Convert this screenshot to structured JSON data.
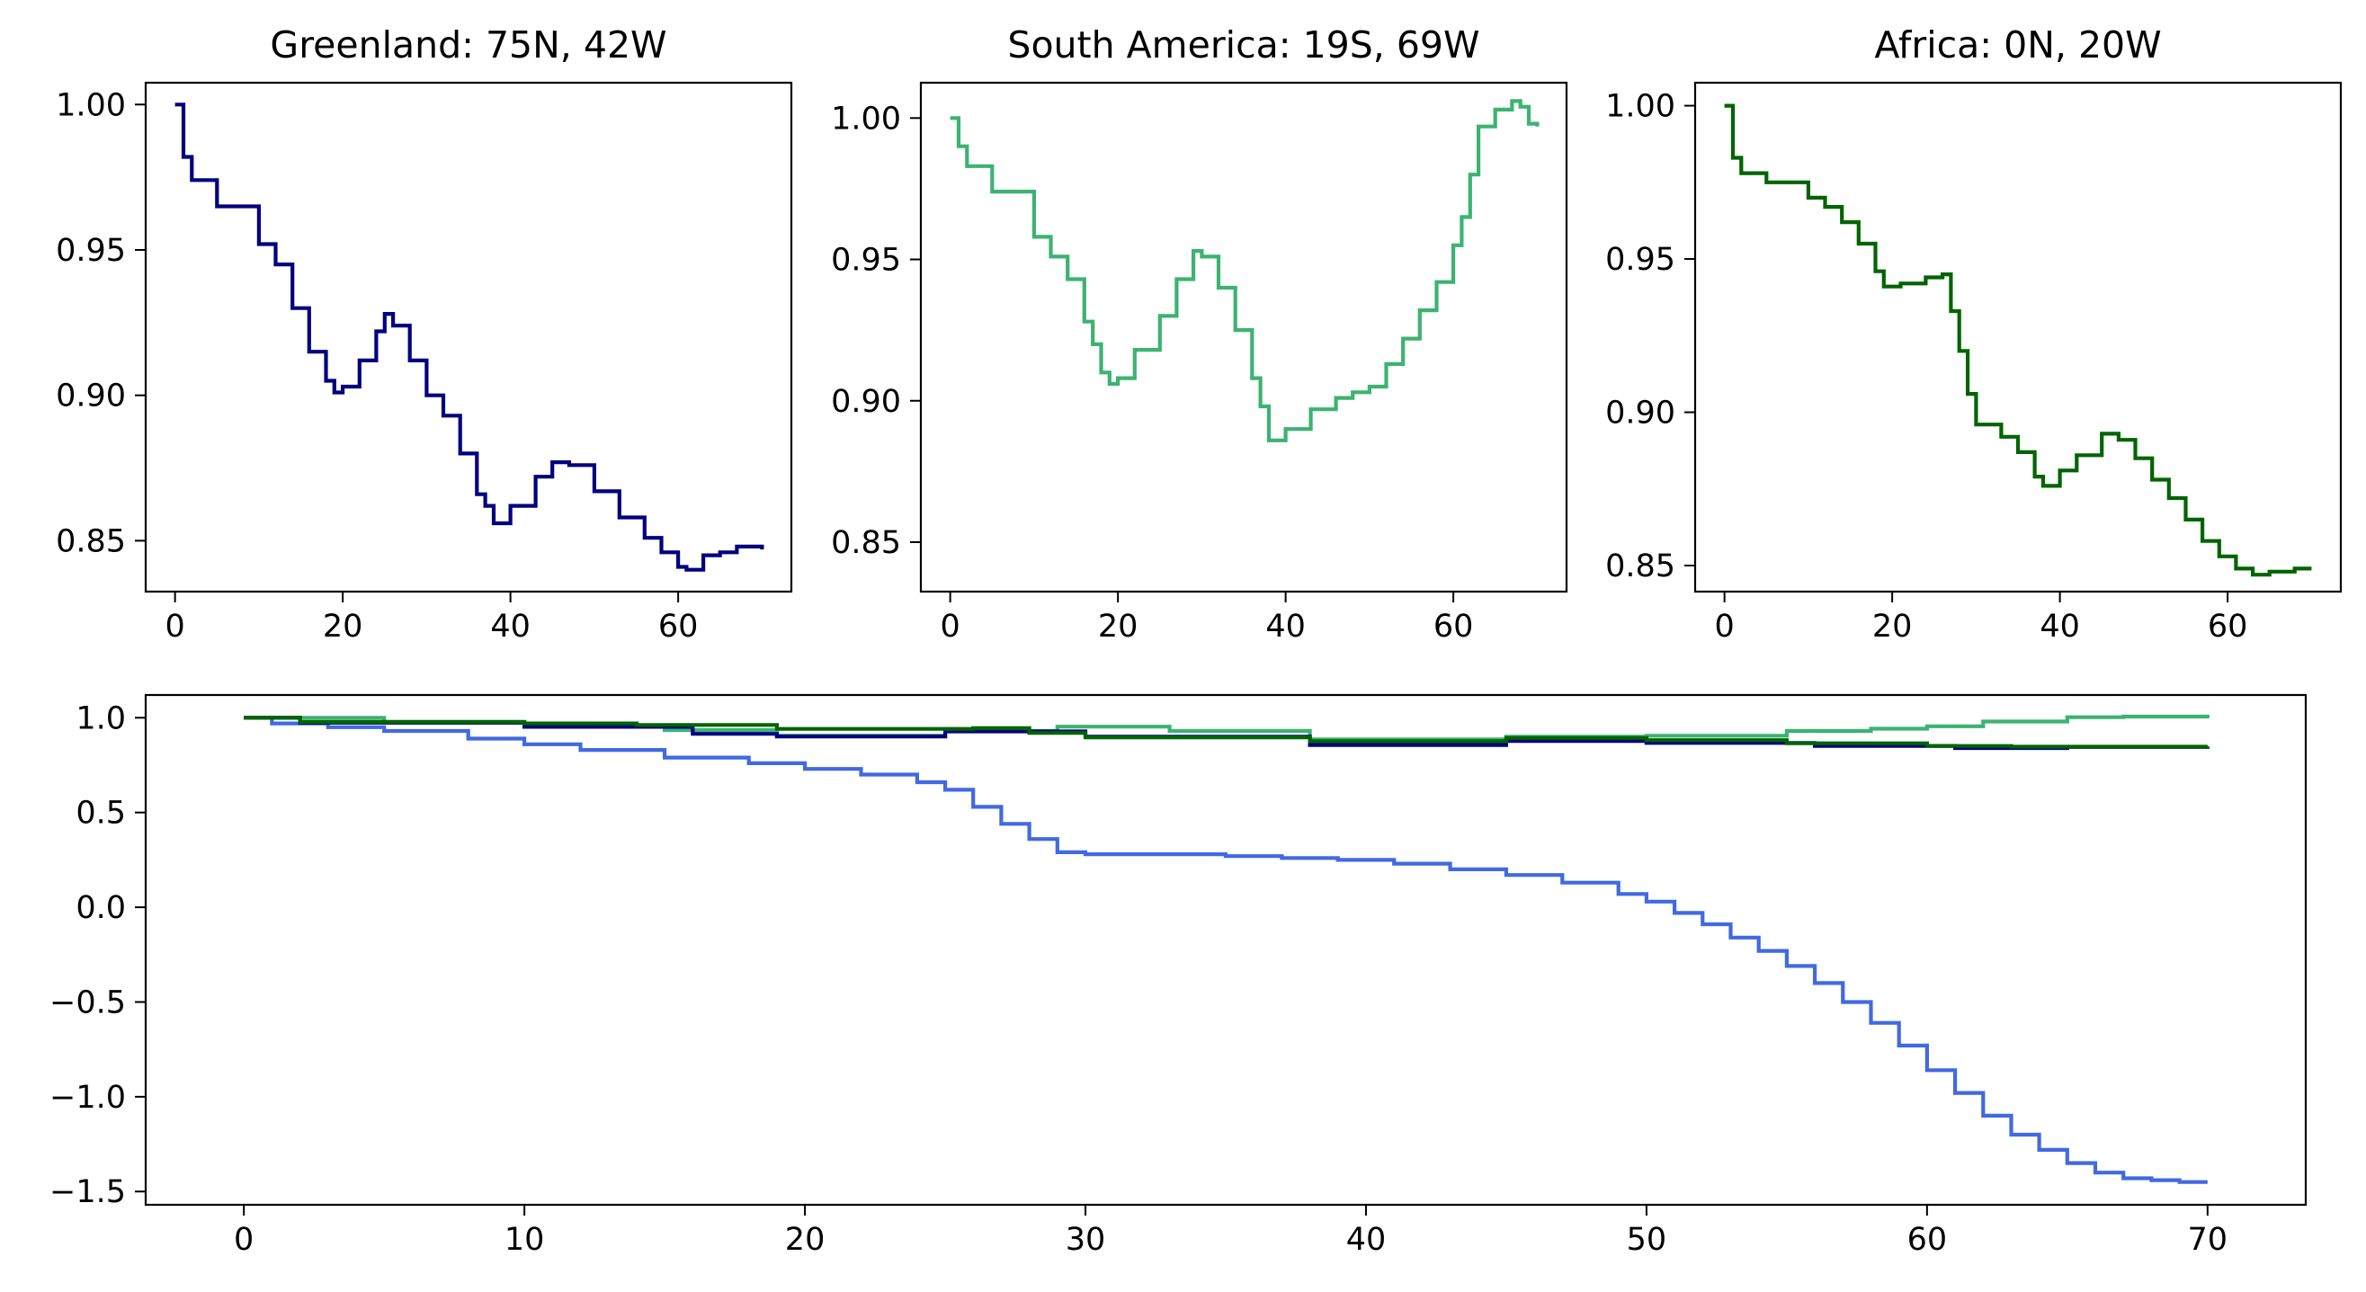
{
  "chart_data": [
    {
      "type": "line",
      "title": "Greenland: 75N, 42W",
      "xlim": [
        -3.5,
        73.5
      ],
      "ylim": [
        0.8325,
        1.0075
      ],
      "xticks": [
        0,
        20,
        40,
        60
      ],
      "yticks": [
        0.85,
        0.9,
        0.95,
        1.0
      ],
      "xtick_labels": [
        "0",
        "20",
        "40",
        "60"
      ],
      "ytick_labels": [
        "0.85",
        "0.90",
        "0.95",
        "1.00"
      ],
      "series": [
        {
          "color": "#000080",
          "points": [
            [
              0,
              1.0
            ],
            [
              1,
              0.982
            ],
            [
              2,
              0.974
            ],
            [
              5,
              0.965
            ],
            [
              10,
              0.952
            ],
            [
              12,
              0.945
            ],
            [
              14,
              0.93
            ],
            [
              16,
              0.915
            ],
            [
              18,
              0.905
            ],
            [
              19,
              0.901
            ],
            [
              20,
              0.903
            ],
            [
              22,
              0.912
            ],
            [
              24,
              0.922
            ],
            [
              25,
              0.928
            ],
            [
              26,
              0.924
            ],
            [
              28,
              0.912
            ],
            [
              30,
              0.9
            ],
            [
              32,
              0.893
            ],
            [
              34,
              0.88
            ],
            [
              36,
              0.866
            ],
            [
              37,
              0.862
            ],
            [
              38,
              0.856
            ],
            [
              40,
              0.862
            ],
            [
              43,
              0.872
            ],
            [
              45,
              0.877
            ],
            [
              47,
              0.876
            ],
            [
              50,
              0.867
            ],
            [
              53,
              0.858
            ],
            [
              56,
              0.851
            ],
            [
              58,
              0.846
            ],
            [
              60,
              0.841
            ],
            [
              61,
              0.84
            ],
            [
              63,
              0.845
            ],
            [
              65,
              0.846
            ],
            [
              67,
              0.848
            ],
            [
              69,
              0.848
            ],
            [
              70,
              0.847
            ]
          ]
        }
      ]
    },
    {
      "type": "line",
      "title": "South America: 19S, 69W",
      "xlim": [
        -3.5,
        73.5
      ],
      "ylim": [
        0.8325,
        1.0125
      ],
      "xticks": [
        0,
        20,
        40,
        60
      ],
      "yticks": [
        0.85,
        0.9,
        0.95,
        1.0
      ],
      "xtick_labels": [
        "0",
        "20",
        "40",
        "60"
      ],
      "ytick_labels": [
        "0.85",
        "0.90",
        "0.95",
        "1.00"
      ],
      "series": [
        {
          "color": "#3cb371",
          "points": [
            [
              0,
              1.0
            ],
            [
              1,
              0.99
            ],
            [
              2,
              0.983
            ],
            [
              5,
              0.974
            ],
            [
              10,
              0.958
            ],
            [
              12,
              0.951
            ],
            [
              14,
              0.943
            ],
            [
              16,
              0.928
            ],
            [
              17,
              0.92
            ],
            [
              18,
              0.91
            ],
            [
              19,
              0.906
            ],
            [
              20,
              0.908
            ],
            [
              22,
              0.918
            ],
            [
              25,
              0.93
            ],
            [
              27,
              0.943
            ],
            [
              29,
              0.953
            ],
            [
              30,
              0.951
            ],
            [
              32,
              0.94
            ],
            [
              34,
              0.925
            ],
            [
              36,
              0.908
            ],
            [
              37,
              0.898
            ],
            [
              38,
              0.886
            ],
            [
              40,
              0.89
            ],
            [
              43,
              0.897
            ],
            [
              46,
              0.901
            ],
            [
              48,
              0.903
            ],
            [
              50,
              0.905
            ],
            [
              52,
              0.913
            ],
            [
              54,
              0.922
            ],
            [
              56,
              0.932
            ],
            [
              58,
              0.942
            ],
            [
              60,
              0.955
            ],
            [
              61,
              0.965
            ],
            [
              62,
              0.98
            ],
            [
              63,
              0.997
            ],
            [
              65,
              1.003
            ],
            [
              67,
              1.006
            ],
            [
              68,
              1.004
            ],
            [
              69,
              0.998
            ],
            [
              70,
              0.997
            ]
          ]
        }
      ]
    },
    {
      "type": "line",
      "title": "Africa: 0N, 20W",
      "xlim": [
        -3.5,
        73.5
      ],
      "ylim": [
        0.8415,
        1.0075
      ],
      "xticks": [
        0,
        20,
        40,
        60
      ],
      "yticks": [
        0.85,
        0.9,
        0.95,
        1.0
      ],
      "xtick_labels": [
        "0",
        "20",
        "40",
        "60"
      ],
      "ytick_labels": [
        "0.85",
        "0.90",
        "0.95",
        "1.00"
      ],
      "series": [
        {
          "color": "#006400",
          "points": [
            [
              0,
              1.0
            ],
            [
              1,
              0.983
            ],
            [
              2,
              0.978
            ],
            [
              5,
              0.975
            ],
            [
              10,
              0.97
            ],
            [
              12,
              0.967
            ],
            [
              14,
              0.962
            ],
            [
              16,
              0.955
            ],
            [
              18,
              0.946
            ],
            [
              19,
              0.941
            ],
            [
              21,
              0.942
            ],
            [
              24,
              0.944
            ],
            [
              26,
              0.945
            ],
            [
              27,
              0.933
            ],
            [
              28,
              0.92
            ],
            [
              29,
              0.906
            ],
            [
              30,
              0.896
            ],
            [
              33,
              0.892
            ],
            [
              35,
              0.887
            ],
            [
              37,
              0.879
            ],
            [
              38,
              0.876
            ],
            [
              40,
              0.881
            ],
            [
              42,
              0.886
            ],
            [
              45,
              0.893
            ],
            [
              47,
              0.891
            ],
            [
              49,
              0.885
            ],
            [
              51,
              0.878
            ],
            [
              53,
              0.872
            ],
            [
              55,
              0.865
            ],
            [
              57,
              0.858
            ],
            [
              59,
              0.853
            ],
            [
              61,
              0.849
            ],
            [
              63,
              0.847
            ],
            [
              65,
              0.848
            ],
            [
              68,
              0.849
            ],
            [
              70,
              0.849
            ]
          ]
        }
      ]
    },
    {
      "type": "line",
      "title": "",
      "xlim": [
        -3.5,
        73.5
      ],
      "ylim": [
        -1.57,
        1.12
      ],
      "xticks": [
        0,
        10,
        20,
        30,
        40,
        50,
        60,
        70
      ],
      "yticks": [
        -1.5,
        -1.0,
        -0.5,
        0.0,
        0.5,
        1.0
      ],
      "xtick_labels": [
        "0",
        "10",
        "20",
        "30",
        "40",
        "50",
        "60",
        "70"
      ],
      "ytick_labels": [
        "−1.5",
        "−1.0",
        "−0.5",
        "0.0",
        "0.5",
        "1.0"
      ],
      "series": [
        {
          "color": "#4169e1",
          "points": [
            [
              0,
              1.0
            ],
            [
              1,
              0.97
            ],
            [
              3,
              0.95
            ],
            [
              5,
              0.93
            ],
            [
              8,
              0.89
            ],
            [
              10,
              0.86
            ],
            [
              12,
              0.83
            ],
            [
              15,
              0.79
            ],
            [
              18,
              0.76
            ],
            [
              20,
              0.73
            ],
            [
              22,
              0.7
            ],
            [
              24,
              0.66
            ],
            [
              25,
              0.62
            ],
            [
              26,
              0.53
            ],
            [
              27,
              0.44
            ],
            [
              28,
              0.36
            ],
            [
              29,
              0.29
            ],
            [
              30,
              0.28
            ],
            [
              33,
              0.28
            ],
            [
              35,
              0.27
            ],
            [
              37,
              0.26
            ],
            [
              39,
              0.25
            ],
            [
              41,
              0.23
            ],
            [
              43,
              0.2
            ],
            [
              45,
              0.17
            ],
            [
              47,
              0.13
            ],
            [
              49,
              0.07
            ],
            [
              50,
              0.03
            ],
            [
              51,
              -0.03
            ],
            [
              52,
              -0.09
            ],
            [
              53,
              -0.16
            ],
            [
              54,
              -0.23
            ],
            [
              55,
              -0.31
            ],
            [
              56,
              -0.4
            ],
            [
              57,
              -0.5
            ],
            [
              58,
              -0.61
            ],
            [
              59,
              -0.73
            ],
            [
              60,
              -0.86
            ],
            [
              61,
              -0.98
            ],
            [
              62,
              -1.1
            ],
            [
              63,
              -1.2
            ],
            [
              64,
              -1.28
            ],
            [
              65,
              -1.35
            ],
            [
              66,
              -1.4
            ],
            [
              67,
              -1.43
            ],
            [
              68,
              -1.44
            ],
            [
              69,
              -1.45
            ],
            [
              70,
              -1.45
            ]
          ]
        },
        {
          "color": "#3cb371",
          "points": [
            [
              0,
              1.0
            ],
            [
              5,
              0.974
            ],
            [
              10,
              0.958
            ],
            [
              15,
              0.935
            ],
            [
              19,
              0.906
            ],
            [
              25,
              0.93
            ],
            [
              29,
              0.953
            ],
            [
              33,
              0.93
            ],
            [
              38,
              0.886
            ],
            [
              45,
              0.9
            ],
            [
              50,
              0.905
            ],
            [
              55,
              0.93
            ],
            [
              58,
              0.942
            ],
            [
              60,
              0.955
            ],
            [
              62,
              0.98
            ],
            [
              65,
              1.003
            ],
            [
              67,
              1.006
            ],
            [
              70,
              0.997
            ]
          ]
        },
        {
          "color": "#000080",
          "points": [
            [
              0,
              1.0
            ],
            [
              2,
              0.974
            ],
            [
              10,
              0.952
            ],
            [
              16,
              0.915
            ],
            [
              19,
              0.901
            ],
            [
              25,
              0.928
            ],
            [
              30,
              0.9
            ],
            [
              38,
              0.856
            ],
            [
              45,
              0.877
            ],
            [
              50,
              0.867
            ],
            [
              56,
              0.851
            ],
            [
              61,
              0.84
            ],
            [
              65,
              0.846
            ],
            [
              70,
              0.847
            ]
          ]
        },
        {
          "color": "#006400",
          "points": [
            [
              0,
              1.0
            ],
            [
              2,
              0.978
            ],
            [
              10,
              0.97
            ],
            [
              14,
              0.962
            ],
            [
              19,
              0.941
            ],
            [
              26,
              0.945
            ],
            [
              28,
              0.92
            ],
            [
              30,
              0.896
            ],
            [
              38,
              0.876
            ],
            [
              45,
              0.893
            ],
            [
              50,
              0.882
            ],
            [
              55,
              0.865
            ],
            [
              60,
              0.851
            ],
            [
              63,
              0.847
            ],
            [
              70,
              0.849
            ]
          ]
        }
      ]
    }
  ]
}
